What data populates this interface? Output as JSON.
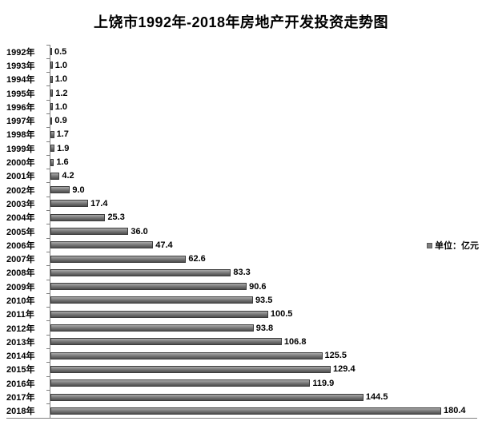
{
  "title": "上饶市1992年-2018年房地产开发投资走势图",
  "legend": {
    "label": "单位：亿元",
    "swatch_color": "#7f7f7f"
  },
  "chart_data": {
    "type": "bar",
    "orientation": "horizontal",
    "title": "上饶市1992年-2018年房地产开发投资走势图",
    "categories": [
      "1992年",
      "1993年",
      "1994年",
      "1995年",
      "1996年",
      "1997年",
      "1998年",
      "1999年",
      "2000年",
      "2001年",
      "2002年",
      "2003年",
      "2004年",
      "2005年",
      "2006年",
      "2007年",
      "2008年",
      "2009年",
      "2010年",
      "2011年",
      "2012年",
      "2013年",
      "2014年",
      "2015年",
      "2016年",
      "2017年",
      "2018年"
    ],
    "values": [
      0.5,
      1.0,
      1.0,
      1.2,
      1.0,
      0.9,
      1.7,
      1.9,
      1.6,
      4.2,
      9.0,
      17.4,
      25.3,
      36.0,
      47.4,
      62.6,
      83.3,
      90.6,
      93.5,
      100.5,
      93.8,
      106.8,
      125.5,
      129.4,
      119.9,
      144.5,
      180.4
    ],
    "value_labels": [
      "0.5",
      "1.0",
      "1.0",
      "1.2",
      "1.0",
      "0.9",
      "1.7",
      "1.9",
      "1.6",
      "4.2",
      "9.0",
      "17.4",
      "25.3",
      "36.0",
      "47.4",
      "62.6",
      "83.3",
      "90.6",
      "93.5",
      "100.5",
      "93.8",
      "106.8",
      "125.5",
      "129.4",
      "119.9",
      "144.5",
      "180.4"
    ],
    "xlim": [
      0,
      190
    ],
    "ylabel": "",
    "xlabel": "",
    "legend_label": "单位：亿元",
    "bar_color": "#787878",
    "grid": false,
    "legend_position": "right-middle"
  }
}
